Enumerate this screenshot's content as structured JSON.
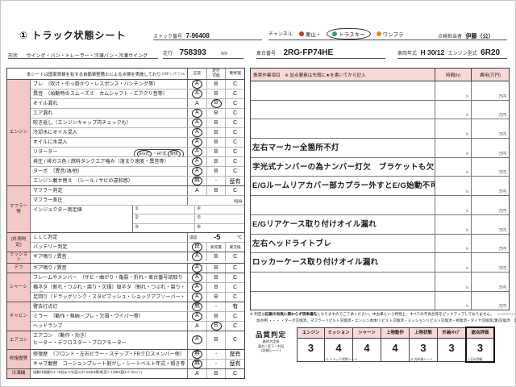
{
  "colors": {
    "pink_header": "#f8d8d8",
    "pink_section": "#f5c8c8",
    "channel_red": "#cc3333",
    "channel_green": "#2f9e68",
    "channel_orange": "#e08a1e"
  },
  "header": {
    "title": "① トラック状態シート",
    "stock_label": "ストック番号",
    "stock_no": "7-96408",
    "channel_label": "チャンネル",
    "channels": [
      {
        "icon": "kuriyama-channel-icon",
        "icon_color": "#cc3333",
        "label": "栗山・",
        "selected": false
      },
      {
        "icon": "trasky-channel-icon",
        "icon_color": "#2f9e68",
        "label": "トラスキー",
        "selected": true
      },
      {
        "icon": "onepla-channel-icon",
        "icon_color": "#e08a1e",
        "label": "ワンプラ",
        "selected": false
      }
    ],
    "inspector_label": "点検担当者",
    "inspector": "伊藤（公）"
  },
  "vehicle": {
    "shape_label": "形状",
    "shape": "ウイング・バン・トレーラー・冷凍バン・冷凍ウイング",
    "mileage_label": "走行",
    "mileage": "758393",
    "mileage_unit": "km",
    "chassis_label": "車台番号",
    "chassis_no": "2RG-FP74HE",
    "year_label": "車両年式",
    "year": "H 30/12",
    "engine_label": "エンジン型式",
    "engine_model": "6R20"
  },
  "left_table": {
    "note": "本シートは国家資格を有する自動車整備士による点検を実施しております",
    "note_small": "詳細 レ点でOK",
    "col_headers": [
      "正常",
      "走行\n可能",
      "要修理"
    ],
    "sections": [
      {
        "name": "エンジン",
        "rows": [
          {
            "label": "ブレ　（吹け・引っ掛かり・レスポンス・ハンチング等）",
            "type": "abc",
            "marks": [
              "A",
              "B",
              "C"
            ],
            "circled": 0
          },
          {
            "label": "異音　（始動時のスムーズさ　カムシャフト・エアクリ音等）",
            "type": "abc",
            "marks": [
              "A",
              "B",
              "C"
            ],
            "circled": 0
          },
          {
            "label": "オイル漏れ",
            "type": "abc",
            "marks": [
              "A",
              "B",
              "C"
            ],
            "circled": 1
          },
          {
            "label": "エア漏れ",
            "type": "abc",
            "marks": [
              "A",
              "B",
              "C"
            ],
            "circled": 0
          },
          {
            "label": "吹き返し（エンジンキャップ内チェックも）",
            "type": "abc",
            "marks": [
              "A",
              "B",
              "C"
            ],
            "circled": 0
          },
          {
            "label": "冷却水にオイル混入",
            "type": "abc",
            "marks": [
              "A",
              "B",
              "C"
            ],
            "circled": 0
          },
          {
            "label": "オイルに水混入",
            "type": "abc",
            "marks": [
              "A",
              "B",
              "C"
            ],
            "circled": 0
          },
          {
            "label": "リターダー",
            "type": "abc",
            "marks": [
              "A",
              "B",
              "C"
            ],
            "circled": 0,
            "extra_parts": [
              {
                "text": "EG式",
                "circled": true
              },
              {
                "text": "・HT式",
                "circled": false
              },
              {
                "text": "液体",
                "circled": true
              }
            ]
          },
          {
            "label": "排圧 / 排ガス色 / 燃料タンクエア噛み（溜まり速度・異音等）",
            "type": "abc",
            "marks": [
              "A",
              "B",
              "C"
            ],
            "circled": 0
          },
          {
            "label": "ターボ　（異音/油/他）",
            "type": "abc",
            "marks": [
              "A",
              "B",
              "C"
            ],
            "circled": 0
          },
          {
            "label": "エンジン載せ替え　（シール / サビの違和感）",
            "type": "abc",
            "marks": [
              "無",
              "-",
              "歴有"
            ],
            "circled": 0
          }
        ]
      },
      {
        "name": "マフラー等",
        "rows": [
          {
            "label": "マフラー判定",
            "type": "abc",
            "marks": [
              "A",
              "B",
              "C"
            ],
            "circled": -1
          },
          {
            "label": "マフラー差圧",
            "type": "unit",
            "unit": "kpa"
          },
          {
            "label": "インジェクター測定値",
            "type": "injector",
            "lines": 3,
            "cells": [
              "①",
              "②",
              "③",
              "④",
              "⑤",
              "⑥"
            ]
          }
        ]
      },
      {
        "name": "(計測判定)",
        "rows": [
          {
            "label": "ＬＬＣ判定",
            "type": "llc",
            "prefix": "濃度",
            "value": "-5",
            "unit": "℃"
          },
          {
            "label": "バッテリー判定",
            "type": "abc",
            "marks": [
              "良",
              "要充電",
              "要交換"
            ],
            "circled": 0,
            "small_marks": true
          }
        ]
      },
      {
        "name": "ミッション",
        "rows": [
          {
            "label": "ギア鳴り / 異音",
            "type": "abc",
            "marks": [
              "A",
              "B",
              "C"
            ],
            "circled": 0
          }
        ]
      },
      {
        "name": "デフ",
        "rows": [
          {
            "label": "ギア鳴り / 異音",
            "type": "abc",
            "marks": [
              "A",
              "B",
              "C"
            ],
            "circled": 0
          }
        ]
      },
      {
        "name": "シャーシ",
        "rows": [
          {
            "label": "フレームやメンバー　（サビ・曲がり・亀裂・折れ・車台番号読取り等）",
            "type": "abc",
            "marks": [
              "A",
              "B",
              "C"
            ],
            "circled": 0
          },
          {
            "label": "横ネタ（割れ・つぶれ・腐り・欠損）縦ネタ（割れ・つぶれ・腐り・欠損）",
            "type": "abc",
            "marks": [
              "A",
              "B",
              "C"
            ],
            "circled": 0
          },
          {
            "label": "足回り（ドラッグリンク・スタビブッシュ・ショックアブソーバー・タイロッドエンド）",
            "type": "abc",
            "marks": [
              "A",
              "B",
              "C"
            ],
            "circled": 0
          }
        ]
      },
      {
        "name": "キャビン",
        "rows": [
          {
            "label": "警告灯点灯",
            "type": "abc",
            "marks": [
              "無",
              "-",
              "有"
            ],
            "circled": 0
          },
          {
            "label": "ミラー　（動作・格納・ブレ・欠損・ワイパー等）",
            "type": "abc",
            "marks": [
              "A",
              "B",
              "C"
            ],
            "circled": 0
          },
          {
            "label": "ヘッドランプ",
            "type": "abc",
            "marks": [
              "A",
              "B",
              "C"
            ],
            "circled": 1
          }
        ]
      },
      {
        "name": "エアコン",
        "rows": [
          {
            "label": "エアコン　（動作・効き）\nヒーター・デフロスター・ブロアモーター",
            "type": "abc",
            "marks": [
              "A",
              "B",
              "C"
            ],
            "circled": 0,
            "lines": 2
          }
        ]
      },
      {
        "name": "修復歴等",
        "rows": [
          {
            "label": "修復歴　（フロント・左右ピラー・ステップ・FRクロスメンバー他）",
            "type": "abc",
            "marks": [
              "無",
              "-",
              "歴有"
            ],
            "circled": 0
          },
          {
            "label": "キャブ載替　コーションプレート剝がし・シートベルト年式・傾き等",
            "type": "abc",
            "marks": [
              "無",
              "-",
              "歴有"
            ],
            "circled": 0
          }
        ]
      },
      {
        "name": "冷凍機",
        "rows": [
          {
            "label": "始動/冷風量/ｺﾝﾃﾞﾝｻ/詰まり/水混入/ｻﾌﾞEG(Hz異,鳴,音,ﾍﾞﾙﾄ)/EG直(ｺﾝﾌﾟ/ｽﾀﾝﾊﾞｲ)",
            "type": "abc",
            "marks": [
              "A",
              "B",
              "C"
            ],
            "circled": -1,
            "small": true
          }
        ]
      }
    ]
  },
  "work_table": {
    "header": "推奨作業項目　※ 加点要素は先頭に★を書いてから記入",
    "time_header": "時間(h)",
    "cost_header": "費用(万円)",
    "time_unit": "h",
    "cost_unit": "万円",
    "rows": [
      "",
      "",
      "",
      "左右マーカー全箇所不灯",
      "字光式ナンバーの為ナンバー灯欠　ブラケットも欠",
      "E/Gルームリアカバー部カプラー外すとE/G始動不可",
      "",
      "E/Gリアケース取り付けオイル漏れ",
      "左右ヘッドライトブレ",
      "ロッカーケース取り付けオイル漏れ",
      "",
      ""
    ]
  },
  "footnote": {
    "line1_prefix": "※ 判定は",
    "line1_bold": "記載の有無に関わらず現車優先",
    "line1_rest": "となりますのでご了承ください。中古車という特性上、すべての不具合等をピックアップしておりません。",
    "date": "2025081108",
    "line2": "加点例 ・・・ ・ターボ交換済、マフラーリビルト交換済・エンジン本体/リビルト交換済・ミッションリビルト交換済・修復済・タイヤ交換等(溝)交換済　など"
  },
  "quality_table": {
    "title": "品質判定",
    "subtitle_lines": [
      "最終判定者",
      "栗村 / 宮下 / 中田",
      "(詳細シート)"
    ],
    "columns": [
      {
        "header": "エンジン",
        "value": "3",
        "note": ""
      },
      {
        "header": "ミッション",
        "value": "4",
        "note": "① トラック状態シート"
      },
      {
        "header": "シャーシ",
        "value": "4",
        "note": ""
      },
      {
        "header": "上物動作",
        "value": "4",
        "note": ""
      },
      {
        "header": "上物状態",
        "value": "3",
        "note": "③ 内外装シート"
      },
      {
        "header": "外装/ｷｬﾌﾞ",
        "value": "3",
        "note": ""
      },
      {
        "header": "総合評価",
        "value": "3",
        "note": "上記&詳細",
        "emphasis": true
      }
    ]
  }
}
